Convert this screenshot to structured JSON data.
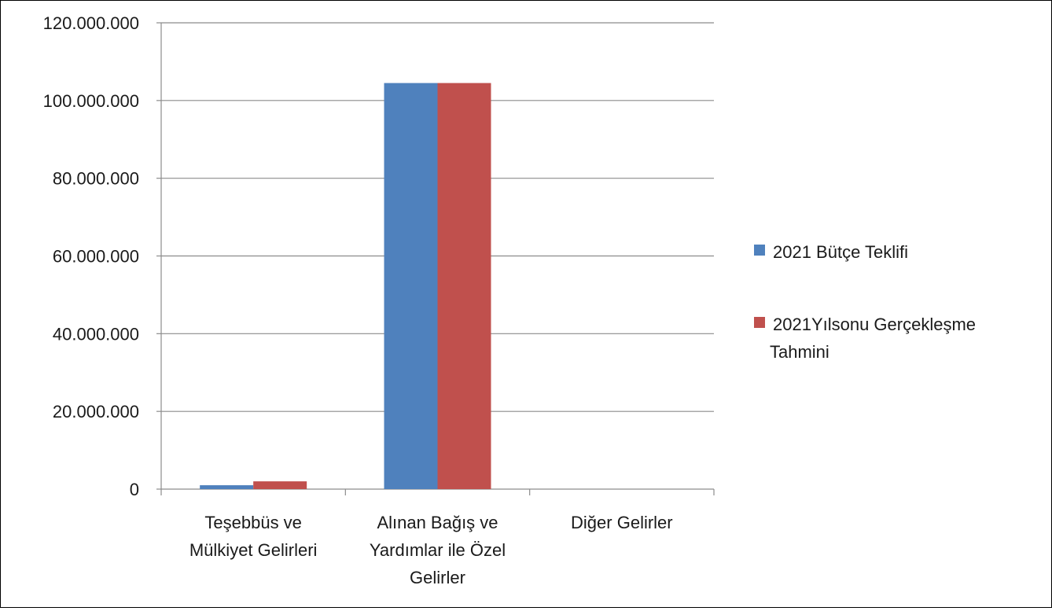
{
  "chart_data": {
    "type": "bar",
    "categories": [
      [
        "Teşebbüs ve",
        "Mülkiyet Gelirleri"
      ],
      [
        "Alınan Bağış ve",
        "Yardımlar ile Özel",
        "Gelirler"
      ],
      [
        "Diğer Gelirler"
      ]
    ],
    "series": [
      {
        "name": "2021 Bütçe Teklifi",
        "color": "#4f81bd",
        "values": [
          1000000,
          104500000,
          0
        ]
      },
      {
        "name_lines": [
          "2021Yılsonu Gerçekleşme",
          "Tahmini"
        ],
        "color": "#c0504d",
        "values": [
          2000000,
          104500000,
          0
        ]
      }
    ],
    "ylim": [
      0,
      120000000
    ],
    "yticks": [
      {
        "value": 0,
        "label": "0"
      },
      {
        "value": 20000000,
        "label": "20.000.000"
      },
      {
        "value": 40000000,
        "label": "40.000.000"
      },
      {
        "value": 60000000,
        "label": "60.000.000"
      },
      {
        "value": 80000000,
        "label": "80.000.000"
      },
      {
        "value": 100000000,
        "label": "100.000.000"
      },
      {
        "value": 120000000,
        "label": "120.000.000"
      }
    ],
    "grid": true,
    "legend_position": "right"
  }
}
